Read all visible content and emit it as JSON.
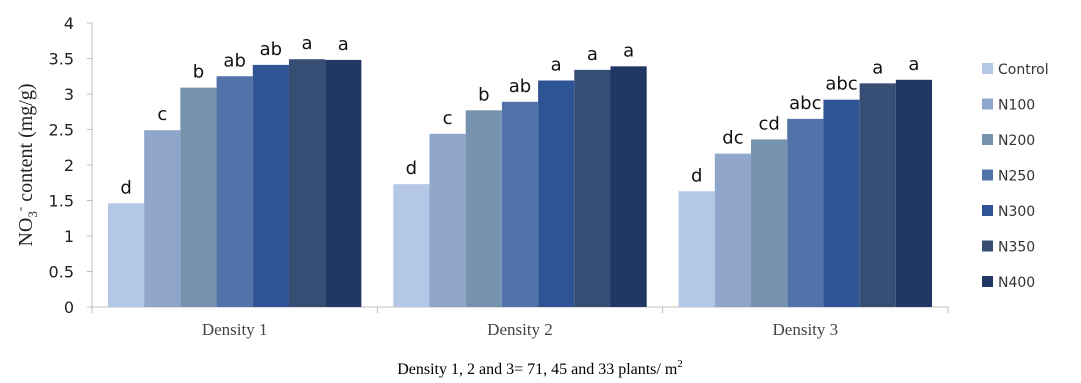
{
  "chart_data": {
    "type": "bar",
    "categories": [
      "Density 1",
      "Density 2",
      "Density 3"
    ],
    "series": [
      {
        "name": "Control",
        "color": "#B4C7E7",
        "values": [
          1.46,
          1.73,
          1.63
        ]
      },
      {
        "name": "N100",
        "color": "#8FA5C9",
        "values": [
          2.49,
          2.44,
          2.16
        ]
      },
      {
        "name": "N200",
        "color": "#7593AE",
        "values": [
          3.09,
          2.77,
          2.36
        ]
      },
      {
        "name": "N250",
        "color": "#5273A9",
        "values": [
          3.25,
          2.89,
          2.65
        ]
      },
      {
        "name": "N300",
        "color": "#2F5496",
        "values": [
          3.41,
          3.19,
          2.92
        ]
      },
      {
        "name": "N350",
        "color": "#364D74",
        "values": [
          3.49,
          3.34,
          3.15
        ]
      },
      {
        "name": "N400",
        "color": "#223864",
        "values": [
          3.48,
          3.39,
          3.2
        ]
      }
    ],
    "significance_letters": [
      [
        "d",
        "c",
        "b",
        "ab",
        "ab",
        "a",
        "a"
      ],
      [
        "d",
        "c",
        "b",
        "ab",
        "a",
        "a",
        "a"
      ],
      [
        "d",
        "dc",
        "cd",
        "abc",
        "abc",
        "a",
        "a"
      ]
    ],
    "yticks": [
      "0",
      "0.5",
      "1",
      "1.5",
      "2",
      "2.5",
      "3",
      "3.5",
      "4"
    ],
    "ylim": [
      0,
      4
    ],
    "ylabel": {
      "main": "NO",
      "sub": "3",
      "sup": "-",
      "rest": " content (mg/g)"
    },
    "legend_position": "right",
    "grid": false,
    "footnote": {
      "text": "Density 1, 2 and 3= 71, 45 and 33 plants/ m",
      "sup": "2"
    }
  }
}
